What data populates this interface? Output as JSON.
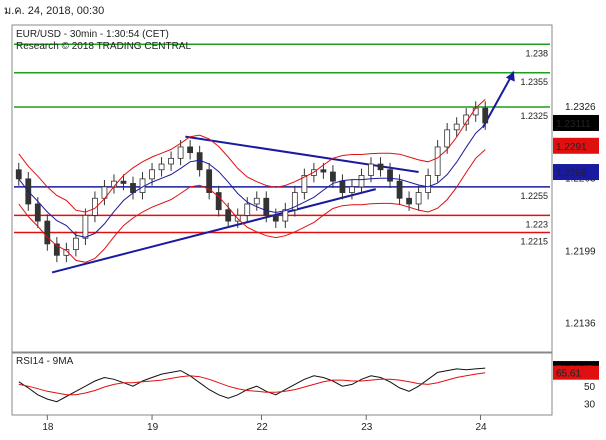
{
  "header": {
    "datetime": "ม.ค. 24, 2018, 00:30"
  },
  "chart_data": [
    {
      "type": "candlestick",
      "title": "EUR/USD - 30min - 1:30:54 (CET)",
      "subtitle": "Research © 2018 TRADING CENTRAL",
      "x_ticks": [
        "18",
        "19",
        "22",
        "23",
        "24"
      ],
      "y_ticks": [
        1.2326,
        1.2263,
        1.2199,
        1.2136
      ],
      "ylim": [
        1.2112,
        1.2396
      ],
      "levels": [
        {
          "label": "1.238",
          "value": 1.238,
          "color": "#1e9e1e"
        },
        {
          "label": "1.2355",
          "value": 1.2355,
          "color": "#1e9e1e"
        },
        {
          "label": "1.2325",
          "value": 1.2325,
          "color": "#1e9e1e"
        },
        {
          "label": "1.2255",
          "value": 1.2255,
          "color": "#1a1aa0"
        },
        {
          "label": "1.223",
          "value": 1.223,
          "color": "#e01010"
        },
        {
          "label": "1.2215",
          "value": 1.2215,
          "color": "#e01010"
        }
      ],
      "price_badges": [
        {
          "label": "1.23111",
          "value": 1.2311,
          "color": "#000000"
        },
        {
          "label": "1.2291",
          "value": 1.2291,
          "color": "#e01010"
        },
        {
          "label": "1.2268",
          "value": 1.2268,
          "color": "#1a1aa0"
        }
      ],
      "trendlines": [
        {
          "from": [
            0.08,
            1.218
          ],
          "to": [
            0.76,
            1.2253
          ],
          "color": "#1a1aa0"
        },
        {
          "from": [
            0.36,
            1.2299
          ],
          "to": [
            0.85,
            1.2268
          ],
          "color": "#1a1aa0"
        }
      ],
      "close": [
        1.2262,
        1.224,
        1.2225,
        1.2205,
        1.2195,
        1.22,
        1.221,
        1.223,
        1.2245,
        1.2255,
        1.226,
        1.2258,
        1.225,
        1.2262,
        1.227,
        1.2275,
        1.228,
        1.229,
        1.2285,
        1.227,
        1.225,
        1.2235,
        1.2225,
        1.223,
        1.224,
        1.2245,
        1.223,
        1.2225,
        1.2235,
        1.225,
        1.2265,
        1.227,
        1.2268,
        1.226,
        1.225,
        1.2255,
        1.2265,
        1.2275,
        1.227,
        1.226,
        1.2245,
        1.224,
        1.225,
        1.2265,
        1.229,
        1.2305,
        1.231,
        1.2318,
        1.2324,
        1.2311
      ]
    },
    {
      "type": "line",
      "title": "RSI14 - 9MA",
      "series": [
        {
          "name": "RSI14"
        },
        {
          "name": "9MA"
        }
      ],
      "y_ticks": [
        70,
        50,
        30
      ],
      "ylim": [
        20,
        85
      ],
      "badges": [
        {
          "label": "71.0047",
          "color": "#000000"
        },
        {
          "label": "65.61",
          "color": "#e01010"
        }
      ],
      "rsi": [
        55,
        48,
        40,
        35,
        32,
        38,
        44,
        50,
        56,
        60,
        58,
        54,
        50,
        56,
        60,
        64,
        66,
        68,
        62,
        54,
        46,
        40,
        36,
        40,
        46,
        50,
        44,
        40,
        46,
        52,
        58,
        62,
        60,
        56,
        50,
        52,
        58,
        62,
        60,
        55,
        48,
        44,
        50,
        58,
        66,
        68,
        70,
        69,
        70,
        71
      ],
      "ma9": [
        52,
        50,
        47,
        44,
        42,
        40,
        40,
        42,
        45,
        49,
        52,
        54,
        54,
        55,
        56,
        57,
        59,
        61,
        62,
        61,
        58,
        54,
        50,
        47,
        45,
        44,
        43,
        43,
        44,
        46,
        49,
        52,
        55,
        57,
        57,
        56,
        56,
        57,
        58,
        58,
        57,
        55,
        53,
        52,
        54,
        57,
        60,
        62,
        64,
        65.61
      ]
    }
  ]
}
